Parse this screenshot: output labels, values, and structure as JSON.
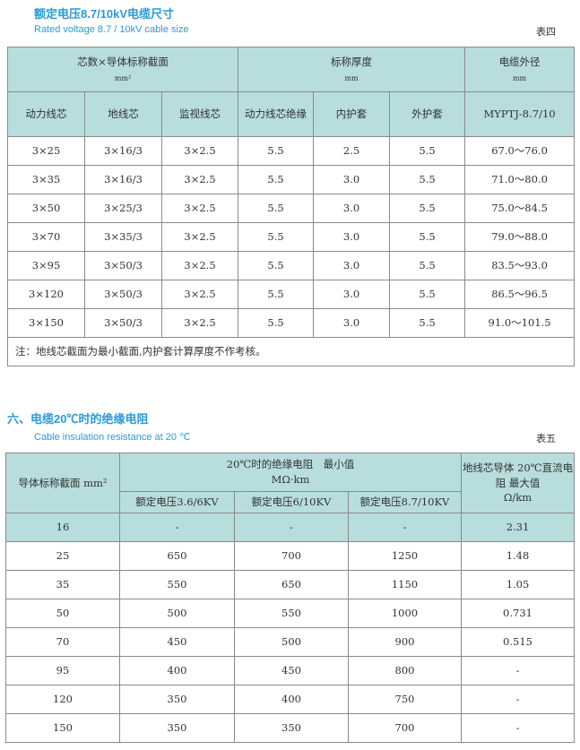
{
  "section4": {
    "title": "额定电压8.7/10kV电缆尺寸",
    "subtitle": "Rated voltage 8.7 / 10kV cable size",
    "tag": "表四",
    "header": {
      "g1": "芯数×导体标称截面",
      "g1_unit": "mm²",
      "g2": "标称厚度",
      "g2_unit": "mm",
      "g3": "电缆外径",
      "g3_unit": "mm",
      "cols": [
        "动力线芯",
        "地线芯",
        "监视线芯",
        "动力线芯绝缘",
        "内护套",
        "外护套",
        "MYPTJ-8.7/10"
      ]
    },
    "rows": [
      [
        "3×25",
        "3×16/3",
        "3×2.5",
        "5.5",
        "2.5",
        "5.5",
        "67.0～76.0"
      ],
      [
        "3×35",
        "3×16/3",
        "3×2.5",
        "5.5",
        "3.0",
        "5.5",
        "71.0～80.0"
      ],
      [
        "3×50",
        "3×25/3",
        "3×2.5",
        "5.5",
        "3.0",
        "5.5",
        "75.0～84.5"
      ],
      [
        "3×70",
        "3×35/3",
        "3×2.5",
        "5.5",
        "3.0",
        "5.5",
        "79.0～88.0"
      ],
      [
        "3×95",
        "3×50/3",
        "3×2.5",
        "5.5",
        "3.0",
        "5.5",
        "83.5～93.0"
      ],
      [
        "3×120",
        "3×50/3",
        "3×2.5",
        "5.5",
        "3.0",
        "5.5",
        "86.5～96.5"
      ],
      [
        "3×150",
        "3×50/3",
        "3×2.5",
        "5.5",
        "3.0",
        "5.5",
        "91.0～101.5"
      ]
    ],
    "note": "注：地线芯截面为最小截面,内护套计算厚度不作考核。"
  },
  "section6": {
    "title": "六、电缆20℃时的绝缘电阻",
    "subtitle": "Cable insulation resistance at 20 ℃",
    "tag": "表五",
    "header": {
      "c1": "导体标称截面 mm²",
      "g": "20℃时的绝缘电阻　最小值",
      "g_unit": "MΩ·km",
      "c5": "地线芯导体 20℃直流电阻 最大值",
      "c5_unit": "Ω/km",
      "sub": [
        "额定电压3.6/6KV",
        "额定电压6/10KV",
        "额定电压8.7/10KV"
      ]
    },
    "rows": [
      [
        "16",
        "-",
        "-",
        "-",
        "2.31"
      ],
      [
        "25",
        "650",
        "700",
        "1250",
        "1.48"
      ],
      [
        "35",
        "550",
        "650",
        "1150",
        "1.05"
      ],
      [
        "50",
        "500",
        "550",
        "1000",
        "0.731"
      ],
      [
        "70",
        "450",
        "500",
        "900",
        "0.515"
      ],
      [
        "95",
        "400",
        "450",
        "800",
        "-"
      ],
      [
        "120",
        "350",
        "400",
        "750",
        "-"
      ],
      [
        "150",
        "350",
        "350",
        "700",
        "-"
      ]
    ]
  },
  "colors": {
    "title": "#2a9ad6",
    "header_bg": "#b7dddd"
  }
}
